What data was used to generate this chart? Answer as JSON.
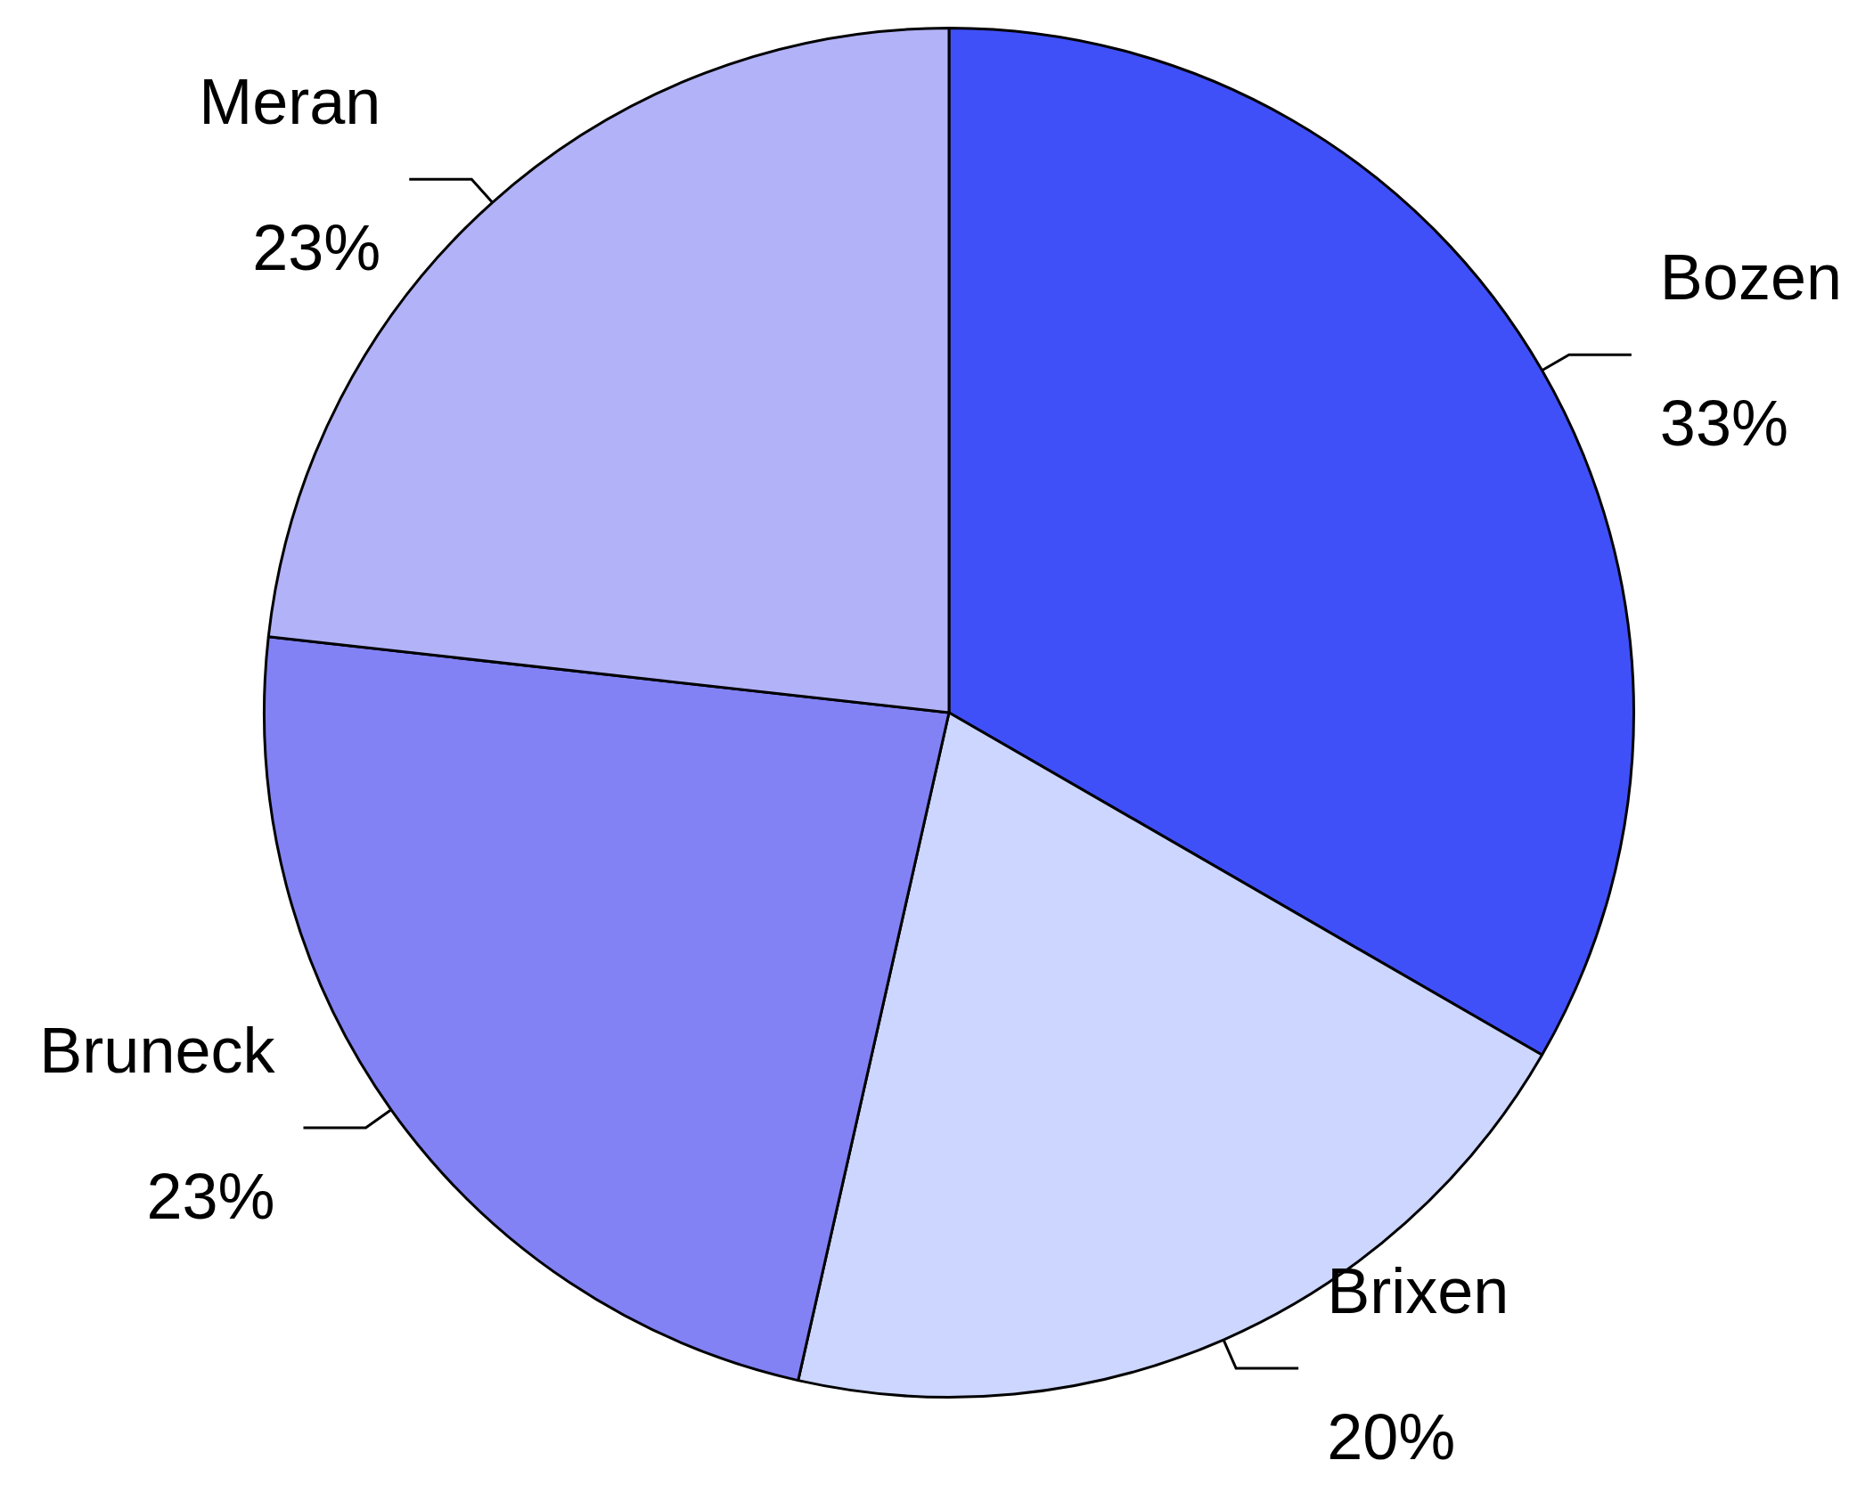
{
  "chart_data": {
    "type": "pie",
    "categories": [
      "Bozen",
      "Brixen",
      "Bruneck",
      "Meran"
    ],
    "values": [
      33,
      20,
      23,
      23
    ],
    "value_labels": [
      "33%",
      "20%",
      "23%",
      "23%"
    ],
    "colors": [
      "#4050f8",
      "#ccd6fe",
      "#8282f5",
      "#b2b2f8"
    ],
    "legend": false
  }
}
